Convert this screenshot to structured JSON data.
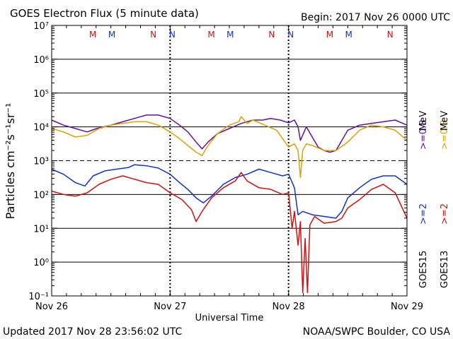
{
  "header": {
    "title": "GOES Electron Flux (5 minute data)",
    "begin": "Begin: 2017 Nov 26 0000 UTC"
  },
  "footer": {
    "updated": "Updated 2017 Nov 28 23:56:02 UTC",
    "credit": "NOAA/SWPC Boulder, CO USA"
  },
  "chart_data": {
    "type": "line",
    "xlabel": "Universal Time",
    "ylabel": "Particles cm⁻²s⁻¹sr⁻¹",
    "x_range_days": [
      0,
      3
    ],
    "x_ticks": [
      "Nov 26",
      "Nov 27",
      "Nov 28",
      "Nov 29"
    ],
    "y_scale": "log",
    "y_exp_range": [
      -1,
      7
    ],
    "y_tick_labels": [
      "10⁻¹",
      "10⁰",
      "10¹",
      "10²",
      "10³",
      "10⁴",
      "10⁵",
      "10⁶",
      "10⁷"
    ],
    "threshold_exp": 3,
    "marker_label_colors": {
      "M": "#d01010",
      "N": "#d01010",
      "M2": "#1030d0",
      "N2": "#1030d0"
    },
    "markers": [
      {
        "label": "M",
        "day": 0.36,
        "color": "#d01010"
      },
      {
        "label": "M",
        "day": 0.52,
        "color": "#1030d0"
      },
      {
        "label": "N",
        "day": 0.87,
        "color": "#d01010"
      },
      {
        "label": "N",
        "day": 1.03,
        "color": "#1030d0"
      },
      {
        "label": "M",
        "day": 1.36,
        "color": "#d01010"
      },
      {
        "label": "M",
        "day": 1.52,
        "color": "#1030d0"
      },
      {
        "label": "N",
        "day": 1.87,
        "color": "#d01010"
      },
      {
        "label": "N",
        "day": 2.03,
        "color": "#1030d0"
      },
      {
        "label": "M",
        "day": 2.36,
        "color": "#d01010"
      },
      {
        "label": "M",
        "day": 2.52,
        "color": "#1030d0"
      },
      {
        "label": "N",
        "day": 2.87,
        "color": "#d01010"
      },
      {
        "label": "N",
        "day": 3.03,
        "color": "#1030d0"
      }
    ],
    "legend": [
      {
        "id": "g15_low",
        "text": ">=0.8",
        "color": "#6010a0"
      },
      {
        "id": "g13_low",
        "text": ">=0.8",
        "color": "#e0a000"
      },
      {
        "id": "unit",
        "text": "MeV",
        "color": "#000000"
      },
      {
        "id": "g15_high",
        "text": ">=2",
        "color": "#1030d0"
      },
      {
        "id": "g13_high",
        "text": ">=2",
        "color": "#d01010"
      },
      {
        "id": "g15",
        "text": "GOES15",
        "color": "#000000"
      },
      {
        "id": "g13",
        "text": "GOES13",
        "color": "#000000"
      }
    ],
    "series": [
      {
        "satellite": "GOES15",
        "energy": ">=0.8 MeV",
        "color": "#6010a0",
        "points": [
          [
            0.0,
            4.2
          ],
          [
            0.1,
            4.05
          ],
          [
            0.2,
            3.95
          ],
          [
            0.3,
            3.85
          ],
          [
            0.38,
            3.95
          ],
          [
            0.5,
            4.05
          ],
          [
            0.6,
            4.15
          ],
          [
            0.7,
            4.25
          ],
          [
            0.8,
            4.35
          ],
          [
            0.9,
            4.35
          ],
          [
            1.0,
            4.25
          ],
          [
            1.08,
            4.05
          ],
          [
            1.15,
            3.85
          ],
          [
            1.22,
            3.55
          ],
          [
            1.27,
            3.35
          ],
          [
            1.32,
            3.55
          ],
          [
            1.4,
            3.8
          ],
          [
            1.5,
            3.95
          ],
          [
            1.6,
            4.1
          ],
          [
            1.7,
            4.2
          ],
          [
            1.78,
            4.2
          ],
          [
            1.85,
            4.25
          ],
          [
            1.93,
            4.2
          ],
          [
            2.0,
            4.12
          ],
          [
            2.05,
            4.2
          ],
          [
            2.08,
            4.0
          ],
          [
            2.1,
            3.6
          ],
          [
            2.15,
            4.0
          ],
          [
            2.2,
            3.7
          ],
          [
            2.25,
            3.4
          ],
          [
            2.3,
            3.3
          ],
          [
            2.35,
            3.25
          ],
          [
            2.4,
            3.3
          ],
          [
            2.45,
            3.6
          ],
          [
            2.5,
            3.9
          ],
          [
            2.6,
            4.05
          ],
          [
            2.7,
            4.1
          ],
          [
            2.8,
            4.15
          ],
          [
            2.9,
            4.2
          ],
          [
            3.0,
            4.05
          ]
        ]
      },
      {
        "satellite": "GOES13",
        "energy": ">=0.8 MeV",
        "color": "#e0a000",
        "points": [
          [
            0.0,
            3.95
          ],
          [
            0.1,
            3.85
          ],
          [
            0.2,
            3.7
          ],
          [
            0.3,
            3.75
          ],
          [
            0.4,
            3.95
          ],
          [
            0.5,
            4.05
          ],
          [
            0.6,
            4.1
          ],
          [
            0.7,
            4.15
          ],
          [
            0.8,
            4.15
          ],
          [
            0.9,
            4.05
          ],
          [
            1.0,
            3.85
          ],
          [
            1.08,
            3.65
          ],
          [
            1.15,
            3.45
          ],
          [
            1.22,
            3.25
          ],
          [
            1.27,
            3.15
          ],
          [
            1.32,
            3.45
          ],
          [
            1.4,
            3.8
          ],
          [
            1.5,
            4.05
          ],
          [
            1.58,
            4.15
          ],
          [
            1.6,
            4.3
          ],
          [
            1.65,
            4.1
          ],
          [
            1.7,
            4.2
          ],
          [
            1.8,
            4.05
          ],
          [
            1.9,
            3.9
          ],
          [
            2.0,
            3.4
          ],
          [
            2.05,
            3.5
          ],
          [
            2.08,
            3.3
          ],
          [
            2.1,
            2.5
          ],
          [
            2.12,
            3.3
          ],
          [
            2.15,
            3.5
          ],
          [
            2.2,
            3.45
          ],
          [
            2.3,
            3.3
          ],
          [
            2.4,
            3.3
          ],
          [
            2.5,
            3.55
          ],
          [
            2.6,
            3.9
          ],
          [
            2.7,
            4.05
          ],
          [
            2.8,
            4.0
          ],
          [
            2.9,
            3.9
          ],
          [
            3.0,
            3.6
          ]
        ]
      },
      {
        "satellite": "GOES15",
        "energy": ">=2 MeV",
        "color": "#1030d0",
        "points": [
          [
            0.0,
            2.75
          ],
          [
            0.1,
            2.6
          ],
          [
            0.2,
            2.35
          ],
          [
            0.28,
            2.25
          ],
          [
            0.35,
            2.55
          ],
          [
            0.45,
            2.7
          ],
          [
            0.55,
            2.75
          ],
          [
            0.65,
            2.8
          ],
          [
            0.7,
            2.88
          ],
          [
            0.8,
            2.85
          ],
          [
            0.9,
            2.78
          ],
          [
            1.0,
            2.6
          ],
          [
            1.08,
            2.35
          ],
          [
            1.15,
            2.15
          ],
          [
            1.22,
            1.9
          ],
          [
            1.28,
            1.75
          ],
          [
            1.35,
            1.95
          ],
          [
            1.45,
            2.3
          ],
          [
            1.55,
            2.5
          ],
          [
            1.65,
            2.6
          ],
          [
            1.75,
            2.75
          ],
          [
            1.85,
            2.65
          ],
          [
            1.95,
            2.55
          ],
          [
            2.0,
            2.6
          ],
          [
            2.05,
            2.2
          ],
          [
            2.08,
            1.4
          ],
          [
            2.12,
            1.5
          ],
          [
            2.2,
            1.4
          ],
          [
            2.3,
            1.35
          ],
          [
            2.4,
            1.3
          ],
          [
            2.45,
            1.5
          ],
          [
            2.5,
            1.9
          ],
          [
            2.6,
            2.2
          ],
          [
            2.7,
            2.45
          ],
          [
            2.8,
            2.55
          ],
          [
            2.9,
            2.55
          ],
          [
            3.0,
            2.3
          ]
        ]
      },
      {
        "satellite": "GOES13",
        "energy": ">=2 MeV",
        "color": "#d01010",
        "points": [
          [
            0.0,
            2.1
          ],
          [
            0.1,
            2.0
          ],
          [
            0.2,
            1.95
          ],
          [
            0.3,
            2.05
          ],
          [
            0.4,
            2.3
          ],
          [
            0.5,
            2.45
          ],
          [
            0.6,
            2.55
          ],
          [
            0.7,
            2.45
          ],
          [
            0.8,
            2.35
          ],
          [
            0.9,
            2.3
          ],
          [
            1.0,
            2.05
          ],
          [
            1.1,
            1.85
          ],
          [
            1.18,
            1.55
          ],
          [
            1.22,
            1.2
          ],
          [
            1.27,
            1.5
          ],
          [
            1.35,
            1.9
          ],
          [
            1.45,
            2.2
          ],
          [
            1.55,
            2.4
          ],
          [
            1.6,
            2.65
          ],
          [
            1.65,
            2.4
          ],
          [
            1.75,
            2.2
          ],
          [
            1.85,
            2.15
          ],
          [
            1.95,
            2.0
          ],
          [
            2.0,
            2.05
          ],
          [
            2.03,
            1.0
          ],
          [
            2.05,
            1.5
          ],
          [
            2.08,
            0.5
          ],
          [
            2.1,
            1.2
          ],
          [
            2.12,
            -0.9
          ],
          [
            2.14,
            0.7
          ],
          [
            2.16,
            -0.9
          ],
          [
            2.18,
            1.1
          ],
          [
            2.22,
            1.35
          ],
          [
            2.3,
            1.15
          ],
          [
            2.4,
            1.2
          ],
          [
            2.45,
            1.3
          ],
          [
            2.5,
            1.6
          ],
          [
            2.6,
            1.85
          ],
          [
            2.7,
            2.15
          ],
          [
            2.8,
            2.3
          ],
          [
            2.9,
            2.05
          ],
          [
            3.0,
            1.3
          ]
        ]
      }
    ]
  }
}
